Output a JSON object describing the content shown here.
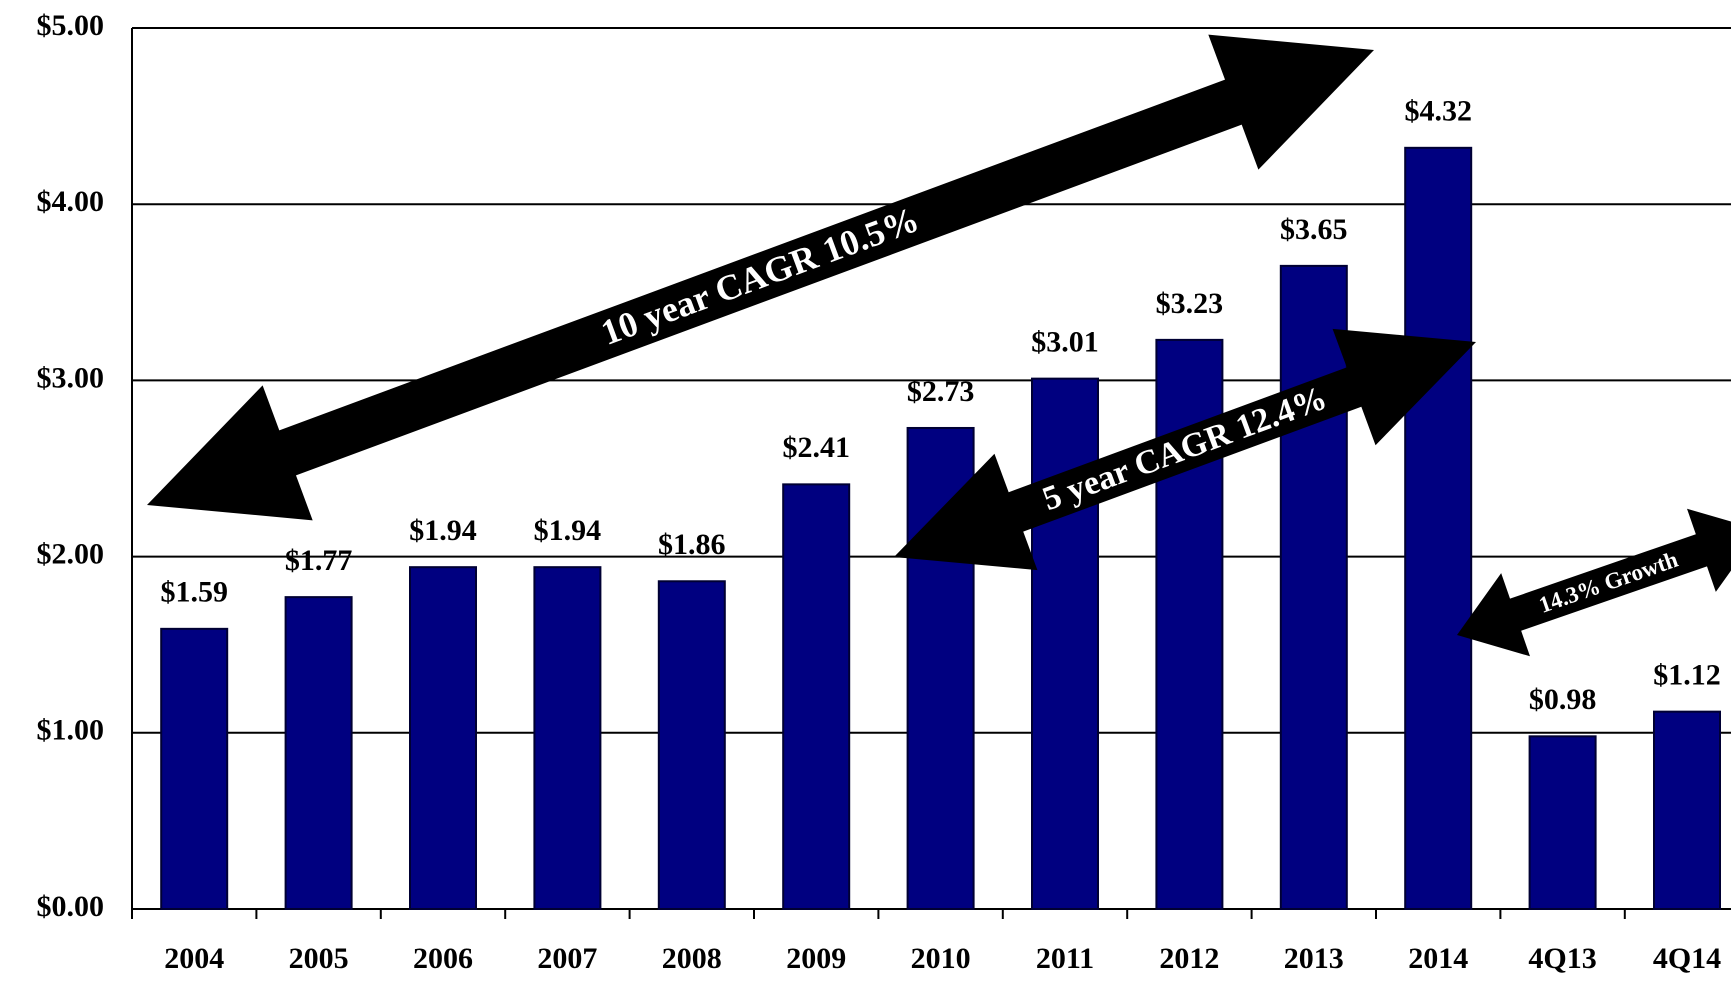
{
  "chart_data": {
    "type": "bar",
    "categories": [
      "2004",
      "2005",
      "2006",
      "2007",
      "2008",
      "2009",
      "2010",
      "2011",
      "2012",
      "2013",
      "2014",
      "4Q13",
      "4Q14"
    ],
    "values": [
      1.59,
      1.77,
      1.94,
      1.94,
      1.86,
      2.41,
      2.73,
      3.01,
      3.23,
      3.65,
      4.32,
      0.98,
      1.12
    ],
    "value_labels": [
      "$1.59",
      "$1.77",
      "$1.94",
      "$1.94",
      "$1.86",
      "$2.41",
      "$2.73",
      "$3.01",
      "$3.23",
      "$3.65",
      "$4.32",
      "$0.98",
      "$1.12"
    ],
    "color": "#000080",
    "ylim": [
      0,
      5
    ],
    "yticks": [
      {
        "value": 0,
        "label": "$0.00"
      },
      {
        "value": 1,
        "label": "$1.00"
      },
      {
        "value": 2,
        "label": "$2.00"
      },
      {
        "value": 3,
        "label": "$3.00"
      },
      {
        "value": 4,
        "label": "$4.00"
      },
      {
        "value": 5,
        "label": "$5.00"
      }
    ],
    "grid": true,
    "annotations": [
      "10 year CAGR 10.5%",
      "5 year CAGR 12.4%",
      "14.3% Growth"
    ]
  }
}
